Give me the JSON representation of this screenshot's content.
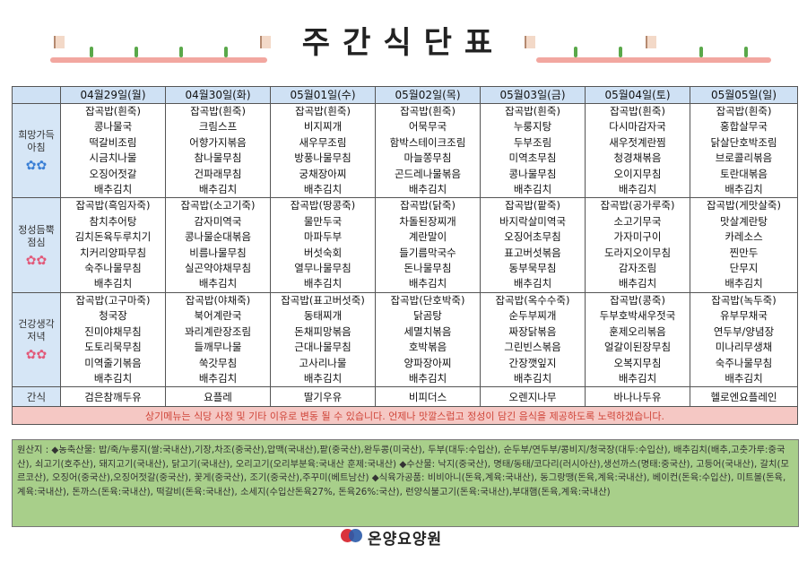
{
  "title": "주간식단표",
  "days": [
    "04월29일(월)",
    "04월30일(화)",
    "05월01일(수)",
    "05월02일(목)",
    "05월03일(금)",
    "05월04일(토)",
    "05월05일(일)"
  ],
  "meals": [
    {
      "label": "희망가득 아침",
      "flower_color": "blue",
      "items": [
        [
          "잡곡밥(흰죽)",
          "콩나물국",
          "떡갈비조림",
          "시금치나물",
          "오징어젓갈",
          "배추김치"
        ],
        [
          "잡곡밥(흰죽)",
          "크림스프",
          "어향가지볶음",
          "참나물무침",
          "건파래무침",
          "배추김치"
        ],
        [
          "잡곡밥(흰죽)",
          "비지찌개",
          "새우무조림",
          "방풍나물무침",
          "궁채장아찌",
          "배추김치"
        ],
        [
          "잡곡밥(흰죽)",
          "어묵무국",
          "함박스테이크조림",
          "마늘쫑무침",
          "곤드레나물볶음",
          "배추김치"
        ],
        [
          "잡곡밥(흰죽)",
          "누룽지탕",
          "두부조림",
          "미역초무침",
          "콩나물무침",
          "배추김치"
        ],
        [
          "잡곡밥(흰죽)",
          "다시마감자국",
          "새우젓계란찜",
          "청경채볶음",
          "오이지무침",
          "배추김치"
        ],
        [
          "잡곡밥(흰죽)",
          "홍합살무국",
          "닭살단호박조림",
          "브로콜리볶음",
          "토란대볶음",
          "배추김치"
        ]
      ]
    },
    {
      "label": "정성듬뿍 점심",
      "flower_color": "pink",
      "items": [
        [
          "잡곡밥(흑임자죽)",
          "참치추어탕",
          "김치돈육두루치기",
          "치커리양파무침",
          "숙주나물무침",
          "배추김치"
        ],
        [
          "잡곡밥(소고기죽)",
          "감자미역국",
          "콩나물순대볶음",
          "비름나물무침",
          "실곤약야채무침",
          "배추김치"
        ],
        [
          "잡곡밥(땅콩죽)",
          "물만두국",
          "마파두부",
          "버섯숙회",
          "열무나물무침",
          "배추김치"
        ],
        [
          "잡곡밥(닭죽)",
          "차돌된장찌개",
          "계란말이",
          "들기름막국수",
          "돈나물무침",
          "배추김치"
        ],
        [
          "잡곡밥(팥죽)",
          "바지락살미역국",
          "오징어초무침",
          "표고버섯볶음",
          "동부묵무침",
          "배추김치"
        ],
        [
          "잡곡밥(공가루죽)",
          "소고기무국",
          "가자미구이",
          "도라지오이무침",
          "감자조림",
          "배추김치"
        ],
        [
          "잡곡밥(게맛살죽)",
          "맛살계란탕",
          "카레소스",
          "찐만두",
          "단무지",
          "배추김치"
        ]
      ]
    },
    {
      "label": "건강생각 저녁",
      "flower_color": "pink",
      "items": [
        [
          "잡곡밥(고구마죽)",
          "청국장",
          "진미야채무침",
          "도토리묵무침",
          "미역줄기볶음",
          "배추김치"
        ],
        [
          "잡곡밥(야채죽)",
          "북어계란국",
          "꽈리계란장조림",
          "들깨무나물",
          "쑥갓무침",
          "배추김치"
        ],
        [
          "잡곡밥(표고버섯죽)",
          "동태찌개",
          "돈채피망볶음",
          "근대나물무침",
          "고사리나물",
          "배추김치"
        ],
        [
          "잡곡밥(단호박죽)",
          "닭곰탕",
          "세멸치볶음",
          "호박볶음",
          "양파장아찌",
          "배추김치"
        ],
        [
          "잡곡밥(옥수수죽)",
          "순두부찌개",
          "짜장닭볶음",
          "그린빈스볶음",
          "간장깻잎지",
          "배추김치"
        ],
        [
          "잡곡밥(콩죽)",
          "두부호박새우젓국",
          "훈제오리볶음",
          "얼갈이된장무침",
          "오복지무침",
          "배추김치"
        ],
        [
          "잡곡밥(녹두죽)",
          "유부무채국",
          "연두부/양념장",
          "미나리무생채",
          "숙주나물무침",
          "배추김치"
        ]
      ]
    }
  ],
  "snack": {
    "label": "간식",
    "items": [
      "검은참깨두유",
      "요플레",
      "딸기우유",
      "비피더스",
      "오렌지나무",
      "바나나두유",
      "헬로엔요플레인"
    ]
  },
  "notice": "상기메뉴는 식당 사정 및 기타 이유로 변동 될 수 있습니다. 언제나 맛깔스럽고 정성이 담긴 음식을 제공하도록 노력하겠습니다.",
  "origin_text": "원산지 : ◆농축산물: 밥/죽/누룽지(쌀:국내산),기장,차조(중국산),압맥(국내산),팥(중국산),완두콩(미국산), 두부(대두:수입산), 순두부/연두부/콩비지/청국장(대두:수입산), 배추김치(배추,고춧가루:중국산), 쇠고기(호주산), 돼지고기(국내산), 닭고기(국내산), 오리고기(오리부분육:국내산 훈제:국내산) ◆수산물: 낙지(중국산), 명태/동태/코다리(러시아산),생선까스(명태:중국산), 고등어(국내산), 갈치(모르코산), 오징어(중국산),오징어젓갈(중국산), 꽃게(중국산), 조기(중국산),주꾸미(베트남산) ◆식육가공품: 비비아니(돈육,계육:국내산), 동그랑땡(돈육,계육:국내산), 베이컨(돈육:수입산), 미트볼(돈육,계육:국내산), 돈까스(돈육:국내산), 떡갈비(돈육:국내산), 소세지(수입산돈육27%, 돈육26%:국산), 런양식불고기(돈육:국내산),부대햄(돈육,계육:국내산)",
  "footer": {
    "name": "온양요양원"
  },
  "colors": {
    "header_bg": "#cfe1f4",
    "notice_bg": "#f5c8c4",
    "notice_text": "#d0463a",
    "origin_bg": "#a8cf8a"
  }
}
